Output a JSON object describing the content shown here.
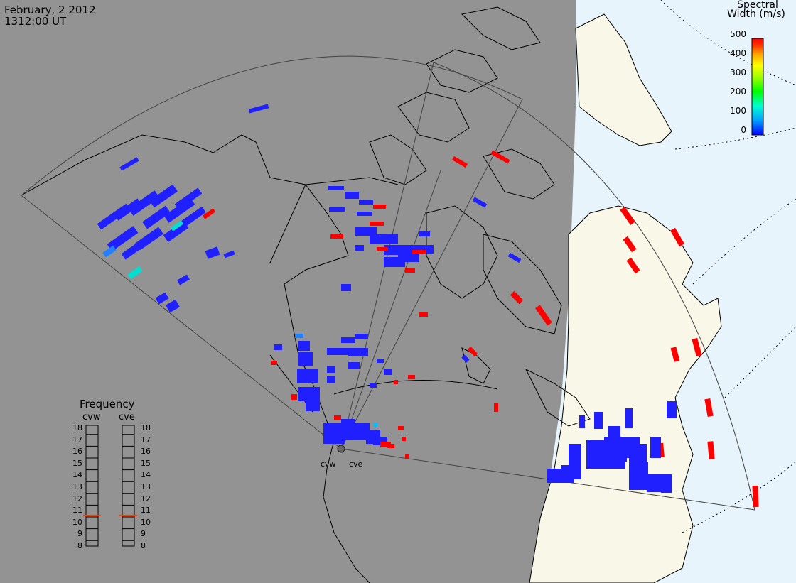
{
  "header": {
    "date": "February, 2 2012",
    "time": "1312:00 UT"
  },
  "colorbar": {
    "title_line1": "Spectral",
    "title_line2": "Width (m/s)",
    "ticks": [
      "500",
      "400",
      "300",
      "200",
      "100",
      "0"
    ],
    "scale": [
      "#0000ff",
      "#00a0ff",
      "#00ffd0",
      "#00ff00",
      "#a0ff00",
      "#ffff00",
      "#ffa000",
      "#ff3000",
      "#ff0000"
    ]
  },
  "sites": {
    "west": "cvw",
    "east": "cve"
  },
  "frequency": {
    "title": "Frequency",
    "col_left": "cvw",
    "col_right": "cve",
    "labels": [
      "18",
      "17",
      "16",
      "15",
      "14",
      "13",
      "12",
      "11",
      "10",
      "9",
      "8"
    ],
    "cvw_mhz": 10.6,
    "cve_mhz": 10.6,
    "marker_color": "#ff4000"
  },
  "colors": {
    "night": "#939393",
    "day_land": "#f8f7e8",
    "day_ocean": "#e8f4fb",
    "scatter_low": "#2020ff",
    "scatter_high": "#ff0000",
    "scatter_mid": "#00e0d0"
  }
}
